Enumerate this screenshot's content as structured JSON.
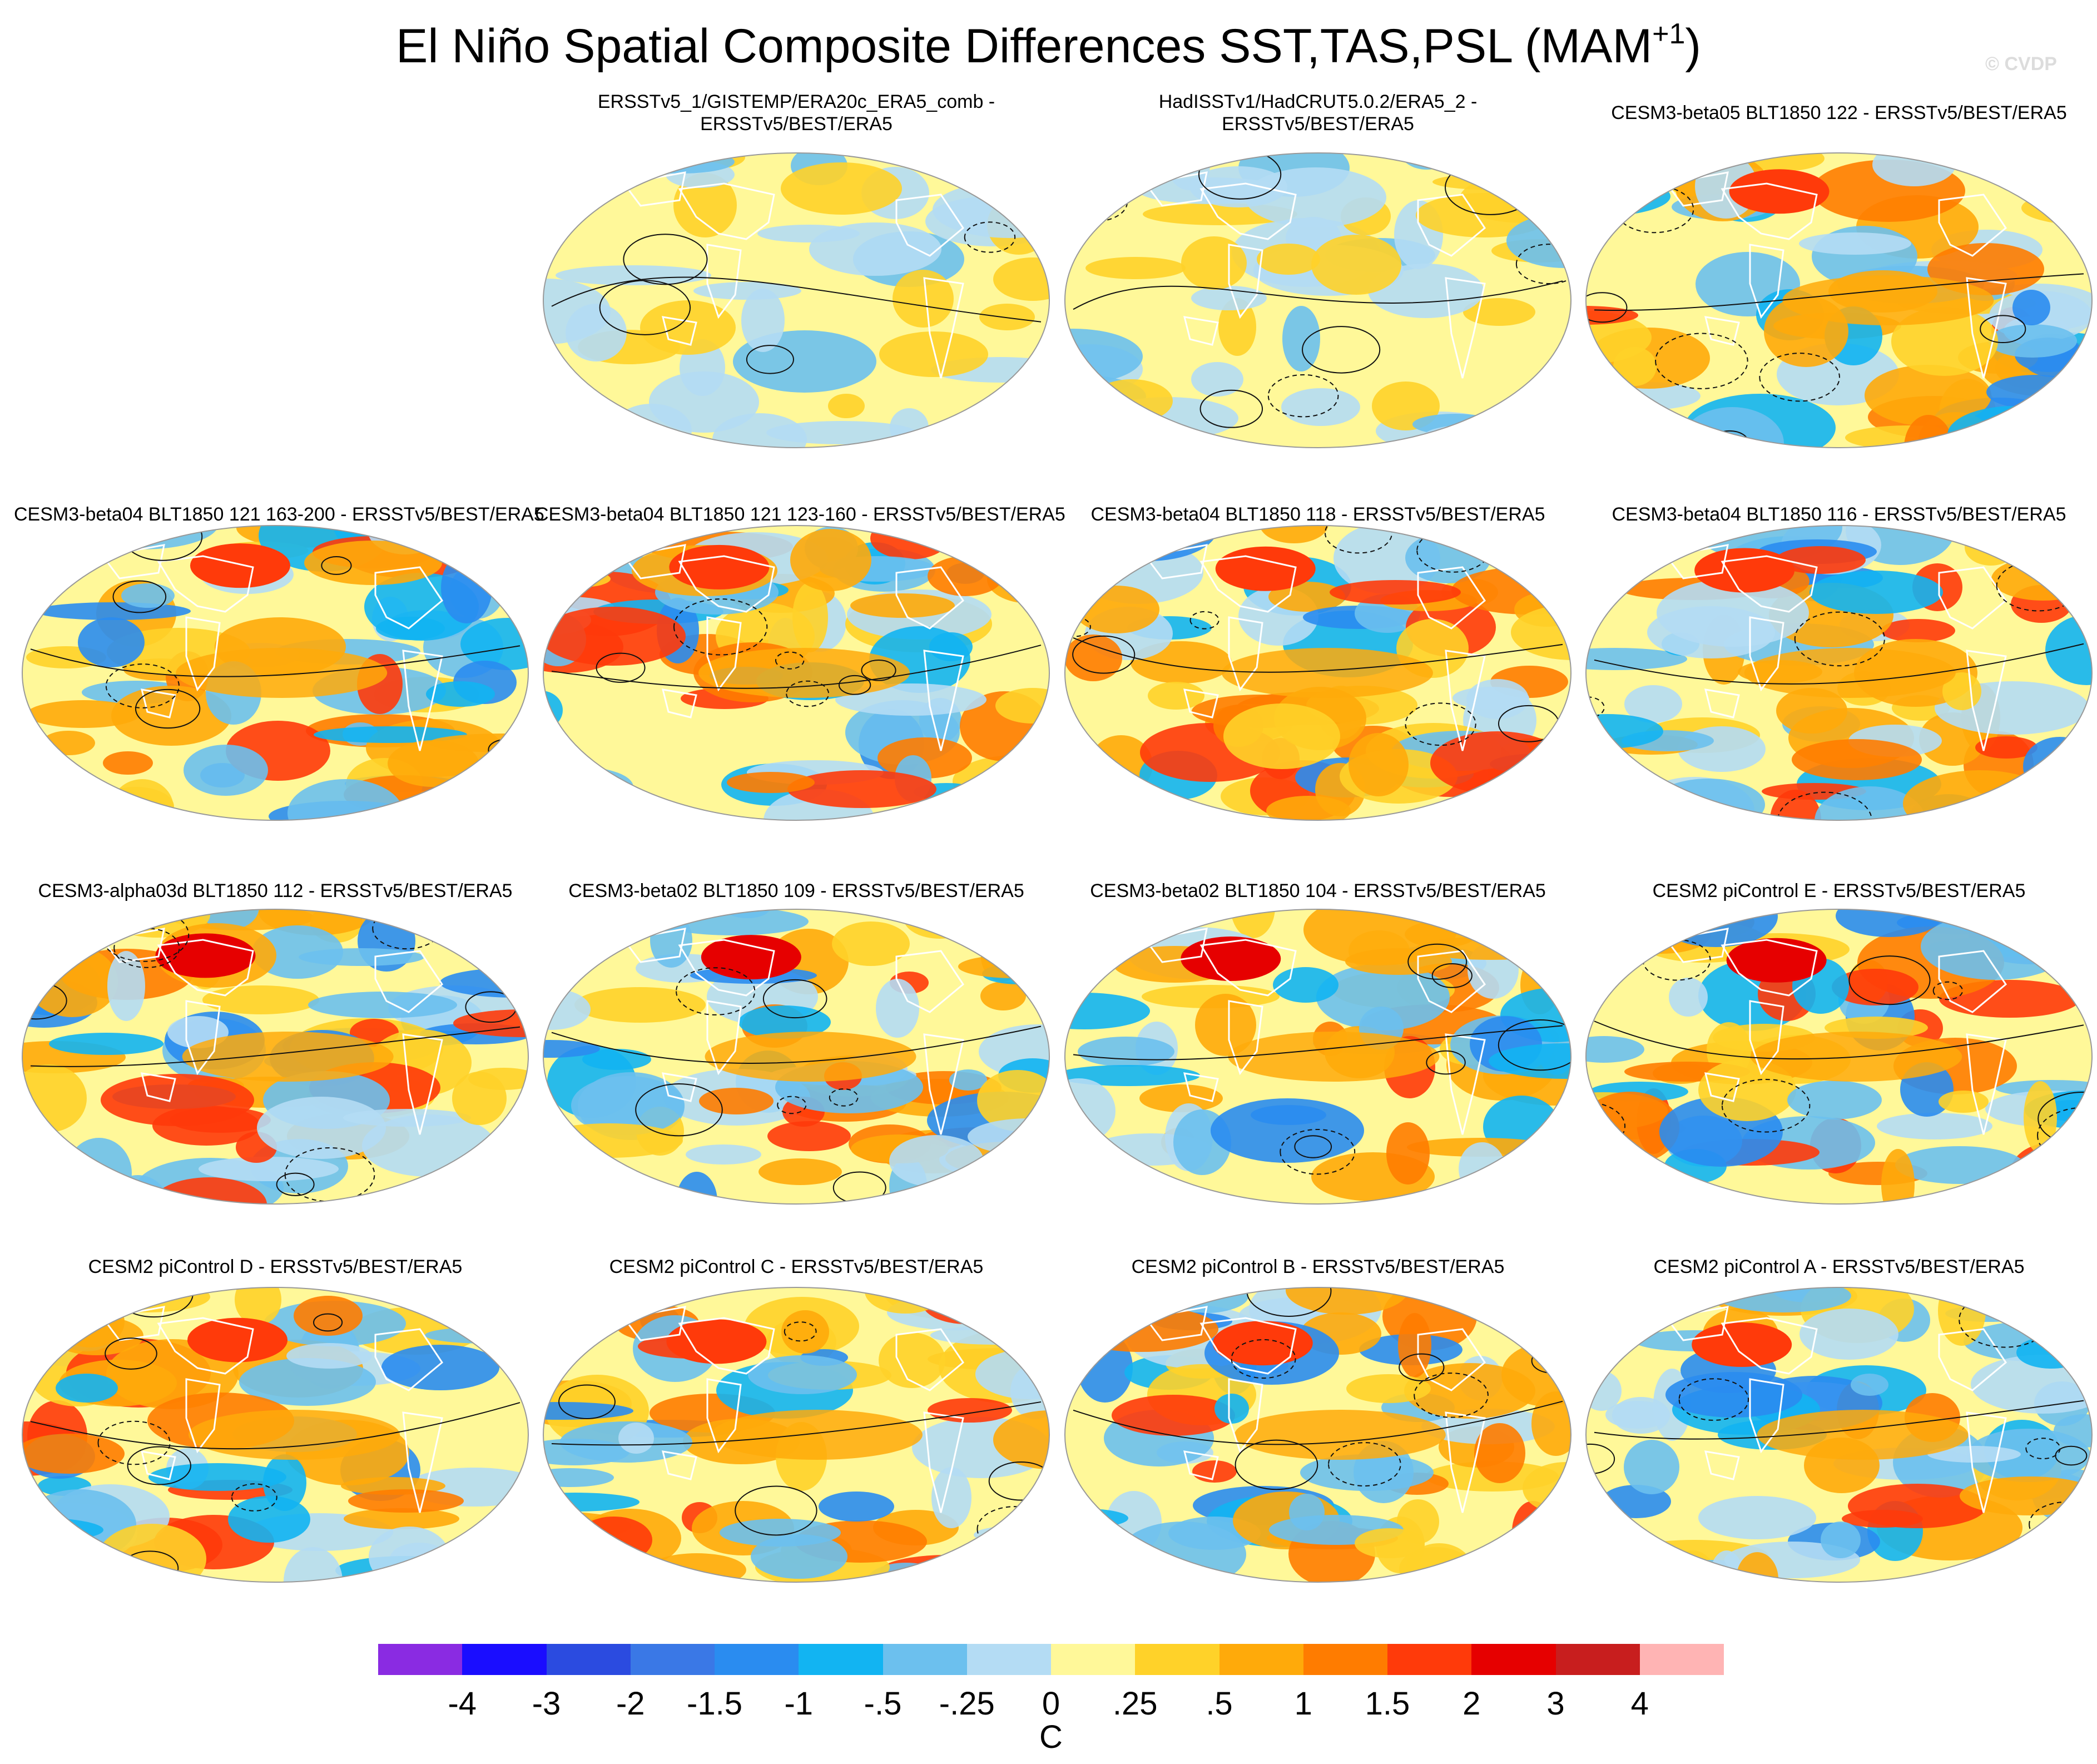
{
  "title": {
    "main": "El Niño Spatial Composite Differences SST,TAS,PSL (MAM",
    "sup": "+1",
    "close": ")"
  },
  "watermark": "© CVDP",
  "panels": [
    {
      "title_lines": [
        "ERSSTv5_1/GISTEMP/ERA20c_ERA5_comb -",
        "ERSSTv5/BEST/ERA5"
      ]
    },
    {
      "title_lines": [
        "HadISSTv1/HadCRUT5.0.2/ERA5_2 -",
        "ERSSTv5/BEST/ERA5"
      ]
    },
    {
      "title_lines": [
        "CESM3-beta05 BLT1850 122 - ERSSTv5/BEST/ERA5"
      ]
    },
    {
      "title_lines": [
        "CESM3-beta04 BLT1850 121 163-200 - ERSSTv5/BEST/ERA5"
      ]
    },
    {
      "title_lines": [
        "CESM3-beta04 BLT1850 121 123-160 - ERSSTv5/BEST/ERA5"
      ]
    },
    {
      "title_lines": [
        "CESM3-beta04 BLT1850 118 - ERSSTv5/BEST/ERA5"
      ]
    },
    {
      "title_lines": [
        "CESM3-beta04 BLT1850 116 - ERSSTv5/BEST/ERA5"
      ]
    },
    {
      "title_lines": [
        "CESM3-alpha03d BLT1850 112 - ERSSTv5/BEST/ERA5"
      ]
    },
    {
      "title_lines": [
        "CESM3-beta02 BLT1850 109 - ERSSTv5/BEST/ERA5"
      ]
    },
    {
      "title_lines": [
        "CESM3-beta02 BLT1850 104 - ERSSTv5/BEST/ERA5"
      ]
    },
    {
      "title_lines": [
        "CESM2 piControl E - ERSSTv5/BEST/ERA5"
      ]
    },
    {
      "title_lines": [
        "CESM2 piControl D - ERSSTv5/BEST/ERA5"
      ]
    },
    {
      "title_lines": [
        "CESM2 piControl C - ERSSTv5/BEST/ERA5"
      ]
    },
    {
      "title_lines": [
        "CESM2 piControl B - ERSSTv5/BEST/ERA5"
      ]
    },
    {
      "title_lines": [
        "CESM2 piControl A - ERSSTv5/BEST/ERA5"
      ]
    }
  ],
  "colorbar": {
    "colors": [
      "#8a2be2",
      "#1a0dff",
      "#2b4be0",
      "#3a78e6",
      "#2a8cf0",
      "#12b4f2",
      "#6cc0ee",
      "#b4dcf4",
      "#fff899",
      "#ffd229",
      "#ffaa0a",
      "#ff7c00",
      "#ff3a0a",
      "#e60000",
      "#c81e1e",
      "#ffb4b4"
    ],
    "labels": [
      "-4",
      "-3",
      "-2",
      "-1.5",
      "-1",
      "-.5",
      "-.25",
      "0",
      ".25",
      ".5",
      "1",
      "1.5",
      "2",
      "3",
      "4"
    ],
    "units": "C"
  }
}
